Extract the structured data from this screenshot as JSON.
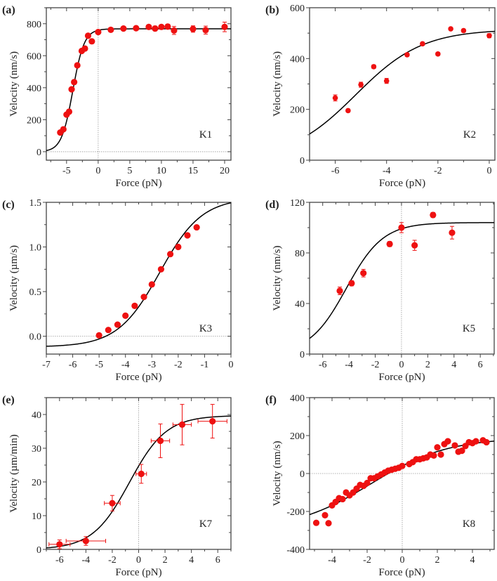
{
  "colors": {
    "marker": "#ee1111",
    "fit": "#000000",
    "frame": "#444444",
    "zero_line": "#999999"
  },
  "chart_data": [
    {
      "panel": "(a)",
      "annotation": "K1",
      "type": "scatter",
      "xlabel": "Force (pN)",
      "ylabel": "Velocity (nm/s)",
      "xlim": [
        -8.2,
        21
      ],
      "ylim": [
        -53,
        900
      ],
      "xticks": [
        -5,
        0,
        5,
        10,
        15,
        20
      ],
      "xtick_labels": [
        "-5",
        "0",
        "5",
        "10",
        "15",
        "20"
      ],
      "yticks": [
        0,
        200,
        400,
        600,
        800
      ],
      "ytick_labels": [
        "0",
        "200",
        "400",
        "600",
        "800"
      ],
      "zero_lines": {
        "x": true,
        "y": true
      },
      "fit": {
        "model": "boltzmann",
        "A0": 0,
        "A1": 768,
        "x0": -4,
        "w": 0.9
      },
      "points": [
        [
          -6,
          120,
          0
        ],
        [
          -5.5,
          140,
          0
        ],
        [
          -5,
          232,
          0
        ],
        [
          -4.6,
          250,
          0
        ],
        [
          -4.2,
          390,
          0
        ],
        [
          -3.8,
          435,
          0
        ],
        [
          -3.3,
          540,
          0
        ],
        [
          -2.6,
          630,
          0
        ],
        [
          -2.1,
          645,
          0
        ],
        [
          -1.6,
          725,
          0
        ],
        [
          -1,
          690,
          0
        ],
        [
          0,
          748,
          0
        ],
        [
          2,
          762,
          0
        ],
        [
          4,
          770,
          0
        ],
        [
          6,
          772,
          0
        ],
        [
          8,
          780,
          10
        ],
        [
          9,
          770,
          15
        ],
        [
          10,
          780,
          12
        ],
        [
          11,
          782,
          15
        ],
        [
          12,
          758,
          25
        ],
        [
          15,
          767,
          20
        ],
        [
          17,
          760,
          25
        ],
        [
          20,
          780,
          30
        ]
      ]
    },
    {
      "panel": "(b)",
      "annotation": "K2",
      "type": "scatter",
      "xlabel": "Force (pN)",
      "ylabel": "Velocity (nm/s)",
      "xlim": [
        -7,
        0.22
      ],
      "ylim": [
        0,
        600
      ],
      "xticks": [
        -6,
        -4,
        -2,
        0
      ],
      "xtick_labels": [
        "-6",
        "-4",
        "-2",
        "0"
      ],
      "yticks": [
        0,
        200,
        400,
        600
      ],
      "ytick_labels": [
        "0",
        "200",
        "400",
        "600"
      ],
      "zero_lines": {
        "x": false,
        "y": false
      },
      "fit": {
        "model": "boltzmann",
        "A0": 0,
        "A1": 515,
        "x0": -5.2,
        "w": 1.3
      },
      "points": [
        [
          -6,
          245,
          12
        ],
        [
          -5.5,
          195,
          6
        ],
        [
          -5,
          297,
          10
        ],
        [
          -4.5,
          368,
          7
        ],
        [
          -4,
          312,
          10
        ],
        [
          -3.2,
          415,
          6
        ],
        [
          -2.6,
          458,
          6
        ],
        [
          -2,
          418,
          6
        ],
        [
          -1.5,
          517,
          5
        ],
        [
          -1,
          510,
          6
        ],
        [
          0,
          490,
          8
        ]
      ]
    },
    {
      "panel": "(c)",
      "annotation": "K3",
      "type": "scatter",
      "xlabel": "Force (pN)",
      "ylabel": "Velocity (µm/s)",
      "xlim": [
        -7,
        0
      ],
      "ylim": [
        -0.2,
        1.5
      ],
      "xticks": [
        -7,
        -6,
        -5,
        -4,
        -3,
        -2,
        -1,
        0
      ],
      "xtick_labels": [
        "-7",
        "-6",
        "-5",
        "-4",
        "-3",
        "-2",
        "-1",
        "0"
      ],
      "yticks": [
        0,
        0.5,
        1.0,
        1.5
      ],
      "ytick_labels": [
        "0.0",
        "0.5",
        "1.0",
        "1.5"
      ],
      "zero_lines": {
        "x": false,
        "y": true
      },
      "fit": {
        "model": "boltzmann",
        "A0": -0.12,
        "A1": 1.55,
        "x0": -2.7,
        "w": 0.8
      },
      "points": [
        [
          -5,
          0.01,
          0
        ],
        [
          -4.65,
          0.07,
          0
        ],
        [
          -4.3,
          0.13,
          0
        ],
        [
          -4,
          0.23,
          0
        ],
        [
          -3.65,
          0.34,
          0
        ],
        [
          -3.3,
          0.44,
          0
        ],
        [
          -3,
          0.58,
          0
        ],
        [
          -2.65,
          0.75,
          0
        ],
        [
          -2.3,
          0.92,
          0
        ],
        [
          -2,
          1.0,
          0
        ],
        [
          -1.65,
          1.13,
          0
        ],
        [
          -1.3,
          1.22,
          0
        ]
      ]
    },
    {
      "panel": "(d)",
      "annotation": "K5",
      "type": "scatter",
      "xlabel": "Force (pN)",
      "ylabel": "Velocity (nm/s)",
      "xlim": [
        -7,
        7.06
      ],
      "ylim": [
        0,
        120
      ],
      "xticks": [
        -6,
        -4,
        -2,
        0,
        2,
        4,
        6
      ],
      "xtick_labels": [
        "-6",
        "-4",
        "-2",
        "0",
        "2",
        "4",
        "6"
      ],
      "yticks": [
        0,
        40,
        80,
        120
      ],
      "ytick_labels": [
        "0",
        "40",
        "80",
        "120"
      ],
      "zero_lines": {
        "x": true,
        "y": false
      },
      "fit": {
        "model": "boltzmann",
        "A0": 0,
        "A1": 104,
        "x0": -4.2,
        "w": 1.4
      },
      "points": [
        [
          -4.7,
          50,
          3
        ],
        [
          -3.8,
          56,
          2
        ],
        [
          -2.9,
          64,
          3
        ],
        [
          -0.9,
          87,
          2
        ],
        [
          0,
          100,
          4
        ],
        [
          1,
          86,
          4
        ],
        [
          2.4,
          110,
          2
        ],
        [
          3.85,
          96,
          5
        ]
      ]
    },
    {
      "panel": "(e)",
      "annotation": "K7",
      "type": "scatter",
      "xlabel": "Force (pN)",
      "ylabel": "Velocity (µm/min)",
      "xlim": [
        -7,
        7
      ],
      "ylim": [
        0,
        45
      ],
      "xticks": [
        -6,
        -4,
        -2,
        0,
        2,
        4,
        6
      ],
      "xtick_labels": [
        "-6",
        "-4",
        "-2",
        "0",
        "2",
        "4",
        "6"
      ],
      "yticks": [
        0,
        10,
        20,
        30,
        40
      ],
      "ytick_labels": [
        "0",
        "10",
        "20",
        "30",
        "40"
      ],
      "zero_lines": {
        "x": true,
        "y": false
      },
      "fit": {
        "model": "boltzmann",
        "A0": 0,
        "A1": 39.7,
        "x0": -0.7,
        "w": 1.4
      },
      "points": [
        [
          -6,
          1.5,
          1.3,
          0.8
        ],
        [
          -4,
          2.5,
          1.3,
          1.5
        ],
        [
          -2,
          13.7,
          2.3,
          0.6
        ],
        [
          0.2,
          22.4,
          2.8,
          0.4
        ],
        [
          1.65,
          32.2,
          5,
          0.7
        ],
        [
          3.3,
          37,
          6,
          0.7
        ],
        [
          5.6,
          38,
          5,
          1.1
        ]
      ]
    },
    {
      "panel": "(f)",
      "annotation": "K8",
      "type": "scatter",
      "xlabel": "Force (pN)",
      "ylabel": "Velocity (nm/s)",
      "xlim": [
        -5.28,
        5.24
      ],
      "ylim": [
        -400,
        400
      ],
      "xticks": [
        -4,
        -2,
        0,
        2,
        4
      ],
      "xtick_labels": [
        "-4",
        "-2",
        "0",
        "2",
        "4"
      ],
      "yticks": [
        -400,
        -200,
        0,
        200,
        400
      ],
      "ytick_labels": [
        "-400",
        "-200",
        "0",
        "200",
        "400"
      ],
      "zero_lines": {
        "x": true,
        "y": true
      },
      "fit": {
        "model": "boltzmann",
        "A0": -300,
        "A1": 190,
        "x0": -1.8,
        "w": 2.2
      },
      "points": [
        [
          -4.9,
          -260,
          0
        ],
        [
          -4.4,
          -220,
          0
        ],
        [
          -4.2,
          -262,
          0
        ],
        [
          -4.0,
          -168,
          0
        ],
        [
          -3.8,
          -150,
          0
        ],
        [
          -3.6,
          -130,
          0
        ],
        [
          -3.4,
          -135,
          0
        ],
        [
          -3.2,
          -100,
          0
        ],
        [
          -3.0,
          -115,
          0
        ],
        [
          -2.8,
          -100,
          0
        ],
        [
          -2.6,
          -80,
          0
        ],
        [
          -2.4,
          -60,
          0
        ],
        [
          -2.2,
          -65,
          0
        ],
        [
          -2.0,
          -50,
          0
        ],
        [
          -1.8,
          -25,
          0
        ],
        [
          -1.6,
          -25,
          0
        ],
        [
          -1.4,
          -15,
          0
        ],
        [
          -1.2,
          -5,
          0
        ],
        [
          -1.0,
          5,
          0
        ],
        [
          -0.8,
          15,
          0
        ],
        [
          -0.6,
          20,
          0
        ],
        [
          -0.4,
          25,
          0
        ],
        [
          -0.2,
          30,
          0
        ],
        [
          0,
          40,
          0
        ],
        [
          0.4,
          50,
          0
        ],
        [
          0.6,
          60,
          0
        ],
        [
          0.8,
          75,
          0
        ],
        [
          1.0,
          75,
          0
        ],
        [
          1.2,
          80,
          0
        ],
        [
          1.4,
          85,
          0
        ],
        [
          1.6,
          100,
          0
        ],
        [
          1.8,
          95,
          0
        ],
        [
          2.0,
          138,
          0
        ],
        [
          2.2,
          100,
          0
        ],
        [
          2.4,
          155,
          0
        ],
        [
          2.6,
          170,
          0
        ],
        [
          3.0,
          148,
          0
        ],
        [
          3.2,
          115,
          0
        ],
        [
          3.4,
          120,
          0
        ],
        [
          3.6,
          145,
          0
        ],
        [
          3.8,
          165,
          0
        ],
        [
          4.0,
          160,
          0
        ],
        [
          4.2,
          170,
          0
        ],
        [
          4.6,
          175,
          0
        ],
        [
          4.8,
          165,
          0
        ]
      ]
    }
  ]
}
